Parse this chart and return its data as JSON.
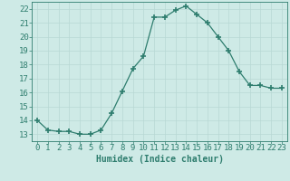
{
  "x": [
    0,
    1,
    2,
    3,
    4,
    5,
    6,
    7,
    8,
    9,
    10,
    11,
    12,
    13,
    14,
    15,
    16,
    17,
    18,
    19,
    20,
    21,
    22,
    23
  ],
  "y": [
    14.0,
    13.3,
    13.2,
    13.2,
    13.0,
    13.0,
    13.3,
    14.5,
    16.1,
    17.7,
    18.6,
    21.4,
    21.4,
    21.9,
    22.2,
    21.6,
    21.0,
    20.0,
    19.0,
    17.5,
    16.5,
    16.5,
    16.3,
    16.3
  ],
  "line_color": "#2e7d6e",
  "marker": "+",
  "marker_size": 4,
  "bg_color": "#ceeae6",
  "grid_color": "#b8d8d4",
  "xlabel": "Humidex (Indice chaleur)",
  "ylim": [
    12.5,
    22.5
  ],
  "xlim": [
    -0.5,
    23.5
  ],
  "yticks": [
    13,
    14,
    15,
    16,
    17,
    18,
    19,
    20,
    21,
    22
  ],
  "xticks": [
    0,
    1,
    2,
    3,
    4,
    5,
    6,
    7,
    8,
    9,
    10,
    11,
    12,
    13,
    14,
    15,
    16,
    17,
    18,
    19,
    20,
    21,
    22,
    23
  ],
  "tick_color": "#2e7d6e",
  "axis_color": "#2e7d6e",
  "font_color": "#2e7d6e",
  "xlabel_fontsize": 7,
  "tick_fontsize": 6.5
}
